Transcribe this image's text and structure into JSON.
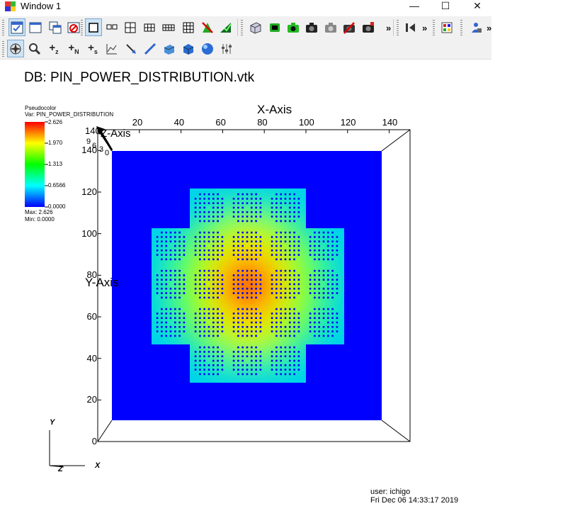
{
  "window": {
    "title": "Window 1",
    "controls": {
      "minimize": "—",
      "maximize": "☐",
      "close": "✕"
    }
  },
  "toolbar_top": {
    "items": [
      {
        "icon": "window-check-icon",
        "active": true
      },
      {
        "icon": "new-window-icon"
      },
      {
        "icon": "clone-window-icon"
      },
      {
        "icon": "delete-window-icon"
      },
      {
        "icon": "layout-1x1-icon",
        "active": true
      },
      {
        "icon": "layout-1x2-icon"
      },
      {
        "icon": "layout-2x2-icon"
      },
      {
        "icon": "layout-2x3-icon"
      },
      {
        "icon": "layout-2x4-icon"
      },
      {
        "icon": "layout-3x3-icon"
      },
      {
        "icon": "spin-icon"
      },
      {
        "icon": "lock-view-icon"
      },
      {
        "icon": "reset-view-3d-icon"
      },
      {
        "icon": "invert-background-icon"
      },
      {
        "icon": "camera-green-icon"
      },
      {
        "icon": "camera-icon"
      },
      {
        "icon": "camera-gray-icon"
      },
      {
        "icon": "camera-disabled-icon"
      },
      {
        "icon": "camera-save-icon"
      },
      {
        "icon": "animation-back-icon"
      },
      {
        "icon": "palette-icon"
      },
      {
        "icon": "lock-person-icon"
      }
    ],
    "overflow_label": "»"
  },
  "toolbar_bottom": {
    "items": [
      {
        "icon": "navigate-compass-icon",
        "active": true
      },
      {
        "icon": "zoom-magnifier-icon"
      },
      {
        "icon": "plus-z-icon",
        "label": "+z"
      },
      {
        "icon": "plus-n-icon",
        "label": "+N"
      },
      {
        "icon": "plus-s-icon",
        "label": "+s"
      },
      {
        "icon": "lineout-icon"
      },
      {
        "icon": "pick-point-icon"
      },
      {
        "icon": "line-probe-icon"
      },
      {
        "icon": "plane-icon"
      },
      {
        "icon": "box-icon"
      },
      {
        "icon": "sphere-icon"
      },
      {
        "icon": "sliders-icon"
      }
    ]
  },
  "db_title": "DB: PIN_POWER_DISTRIBUTION.vtk",
  "legend": {
    "type_label": "Pseudocolor",
    "var_label": "Var: PIN_POWER_DISTRIBUTION",
    "ticks": [
      "2.626",
      "1.970",
      "1.313",
      "0.6566",
      "0.0000"
    ],
    "max_label": "Max:  2.626",
    "min_label": "Min:  0.0000",
    "max": 2.626,
    "min": 0
  },
  "plot": {
    "x_axis_title": "X-Axis",
    "y_axis_title": "Y-Axis",
    "z_axis_title": "Z-Axis",
    "x_ticks": [
      "20",
      "40",
      "60",
      "80",
      "100",
      "120",
      "140"
    ],
    "x_tick_values": [
      20,
      40,
      60,
      80,
      100,
      120,
      140
    ],
    "y_ticks": [
      "0",
      "20",
      "40",
      "60",
      "80",
      "100",
      "120",
      "140"
    ],
    "y_tick_values": [
      0,
      20,
      40,
      60,
      80,
      100,
      120,
      140
    ],
    "z_ticks": [
      "140",
      "120",
      "9",
      "6",
      "3",
      "0"
    ],
    "triad": {
      "y": "Y",
      "z": "Z",
      "x": "X"
    },
    "background_color": "#0000ff",
    "assembly_map": [
      [
        0,
        0,
        0,
        0,
        0,
        0,
        0
      ],
      [
        0,
        0,
        1,
        1,
        1,
        0,
        0
      ],
      [
        0,
        1,
        1,
        1,
        1,
        1,
        0
      ],
      [
        0,
        1,
        1,
        1,
        1,
        1,
        0
      ],
      [
        0,
        1,
        1,
        1,
        1,
        1,
        0
      ],
      [
        0,
        0,
        1,
        1,
        1,
        0,
        0
      ],
      [
        0,
        0,
        0,
        0,
        0,
        0,
        0
      ]
    ]
  },
  "footer": {
    "user": "user: ichigo",
    "date": "Fri Dec 06 14:33:17 2019"
  }
}
